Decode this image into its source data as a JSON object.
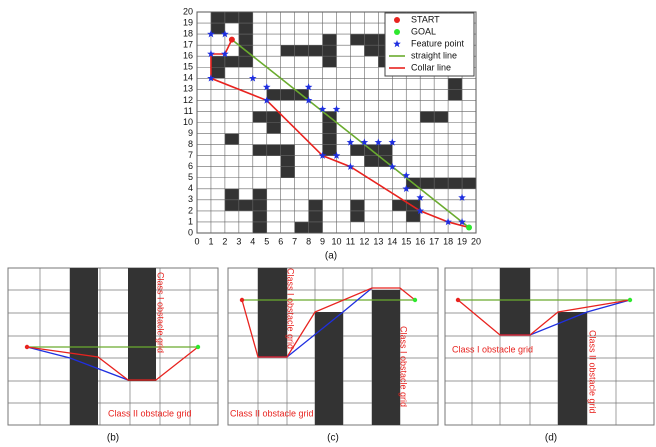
{
  "chart_data": {
    "type": "grid-path",
    "caption": "(a)",
    "xlim": [
      0,
      20
    ],
    "ylim": [
      0,
      20
    ],
    "xticks": [
      0,
      1,
      2,
      3,
      4,
      5,
      6,
      7,
      8,
      9,
      10,
      11,
      12,
      13,
      14,
      15,
      16,
      17,
      18,
      19,
      20
    ],
    "yticks": [
      0,
      1,
      2,
      3,
      4,
      5,
      6,
      7,
      8,
      9,
      10,
      11,
      12,
      13,
      14,
      15,
      16,
      17,
      18,
      19,
      20
    ],
    "grid": true,
    "legend": "upper right",
    "obstacle_color": "#333333",
    "obstacle_cells": [
      [
        1,
        19
      ],
      [
        2,
        19
      ],
      [
        3,
        19
      ],
      [
        1,
        18
      ],
      [
        3,
        18
      ],
      [
        3,
        17
      ],
      [
        3,
        16
      ],
      [
        1,
        15
      ],
      [
        2,
        15
      ],
      [
        3,
        15
      ],
      [
        1,
        14
      ],
      [
        6,
        16
      ],
      [
        7,
        16
      ],
      [
        8,
        16
      ],
      [
        9,
        15
      ],
      [
        9,
        16
      ],
      [
        9,
        17
      ],
      [
        11,
        17
      ],
      [
        12,
        17
      ],
      [
        13,
        17
      ],
      [
        12,
        16
      ],
      [
        13,
        16
      ],
      [
        13,
        15
      ],
      [
        5,
        12
      ],
      [
        6,
        12
      ],
      [
        7,
        12
      ],
      [
        4,
        10
      ],
      [
        5,
        10
      ],
      [
        5,
        9
      ],
      [
        2,
        8
      ],
      [
        4,
        7
      ],
      [
        5,
        7
      ],
      [
        6,
        7
      ],
      [
        6,
        6
      ],
      [
        6,
        5
      ],
      [
        9,
        7
      ],
      [
        9,
        8
      ],
      [
        9,
        9
      ],
      [
        9,
        10
      ],
      [
        11,
        7
      ],
      [
        12,
        7
      ],
      [
        12,
        6
      ],
      [
        13,
        7
      ],
      [
        13,
        6
      ],
      [
        16,
        10
      ],
      [
        17,
        10
      ],
      [
        18,
        12
      ],
      [
        18,
        13
      ],
      [
        15,
        4
      ],
      [
        16,
        4
      ],
      [
        17,
        4
      ],
      [
        18,
        4
      ],
      [
        19,
        4
      ],
      [
        2,
        2
      ],
      [
        2,
        3
      ],
      [
        3,
        2
      ],
      [
        4,
        0
      ],
      [
        4,
        1
      ],
      [
        4,
        2
      ],
      [
        4,
        3
      ],
      [
        7,
        0
      ],
      [
        8,
        0
      ],
      [
        8,
        1
      ],
      [
        8,
        2
      ],
      [
        11,
        1
      ],
      [
        11,
        2
      ],
      [
        14,
        2
      ],
      [
        15,
        1
      ],
      [
        15,
        2
      ]
    ],
    "series": [
      {
        "name": "START",
        "kind": "point",
        "color": "#e8231f",
        "x": [
          2.5
        ],
        "y": [
          17.5
        ]
      },
      {
        "name": "GOAL",
        "kind": "point",
        "color": "#2ee82e",
        "x": [
          19.5
        ],
        "y": [
          0.5
        ]
      },
      {
        "name": "Feature point",
        "kind": "star",
        "color": "#1f2fe0",
        "x": [
          1,
          2,
          1,
          2,
          1,
          4,
          5,
          5,
          8,
          8,
          9,
          10,
          9,
          10,
          11,
          12,
          13,
          14,
          11,
          14,
          15,
          15,
          16,
          16,
          19,
          18,
          19
        ],
        "y": [
          18,
          18,
          16.2,
          16.2,
          14,
          14,
          13.2,
          12,
          13.2,
          12,
          11.2,
          11.2,
          7,
          7,
          8.2,
          8.2,
          8.2,
          8.2,
          6,
          6,
          5.2,
          4,
          3.2,
          2,
          3.2,
          1,
          1
        ]
      },
      {
        "name": "straight line",
        "kind": "line",
        "color": "#6aab2e",
        "x": [
          2.5,
          19.5
        ],
        "y": [
          17.5,
          0.5
        ]
      },
      {
        "name": "Collar line",
        "kind": "line",
        "color": "#e8231f",
        "x": [
          2.5,
          2,
          1,
          1,
          5,
          9,
          11,
          16,
          18,
          19.5
        ],
        "y": [
          17.5,
          16.2,
          16.2,
          14,
          12,
          7,
          6,
          2,
          1,
          0.5
        ]
      }
    ]
  },
  "panels": [
    {
      "caption": "(b)",
      "labels": [
        "Class I obstacle grid",
        "Class II obstacle grid"
      ]
    },
    {
      "caption": "(c)",
      "labels": [
        "Class I obstacle grid",
        "Class I obstacle grid",
        "Class II obstacle grid"
      ]
    },
    {
      "caption": "(d)",
      "labels": [
        "Class I obstacle grid",
        "Class II obstacle grid"
      ]
    }
  ]
}
